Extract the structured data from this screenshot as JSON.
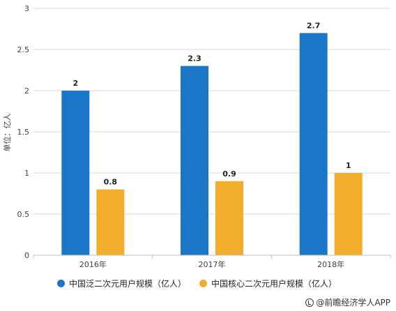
{
  "chart_data": {
    "type": "bar",
    "categories": [
      "2016年",
      "2017年",
      "2018年"
    ],
    "series": [
      {
        "name": "中国泛二次元用户规模（亿人）",
        "values": [
          2,
          2.3,
          2.7
        ],
        "color": "#1a76c6"
      },
      {
        "name": "中国核心二次元用户规模（亿人）",
        "values": [
          0.8,
          0.9,
          1
        ],
        "color": "#f0ae2a"
      }
    ],
    "data_labels": [
      [
        "2",
        "2.3",
        "2.7"
      ],
      [
        "0.8",
        "0.9",
        "1"
      ]
    ],
    "ylabel": "单位：亿人",
    "ylim": [
      0,
      3
    ],
    "yticks": [
      "0",
      "0.5",
      "1",
      "1.5",
      "2",
      "2.5",
      "3"
    ],
    "grid": true,
    "legend_position": "bottom"
  },
  "source": {
    "text": "@前瞻经济学人APP",
    "icon": "circle-check-icon"
  }
}
